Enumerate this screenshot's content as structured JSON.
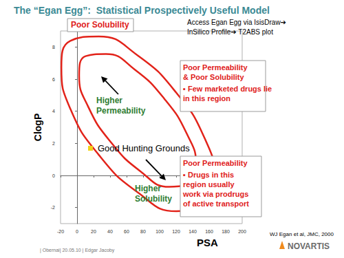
{
  "title": "The “Egan Egg”:  Statistical Prospectively Useful Model",
  "note": [
    "Access Egan Egg via IsisDraw➔",
    "InSilico Profile➔ T2ABS plot"
  ],
  "footer": "| Obernai| 20.05.10 | Edgar Jacoby",
  "citation": "WJ Egan et al, JMC, 2000",
  "logo": "NOVARTIS",
  "chart_data": {
    "type": "line",
    "x_label": "PSA",
    "y_label": "ClogP",
    "xlim": [
      -20,
      200
    ],
    "xticks": [
      -20,
      0,
      20,
      40,
      60,
      80,
      100,
      120,
      140,
      160,
      180,
      200
    ],
    "ylim": [
      -3,
      9
    ],
    "yticks": [
      -2,
      0,
      2,
      4,
      6,
      8
    ],
    "grid": false,
    "series": [
      {
        "color": "#e2231a",
        "line_style": "solid",
        "x": [
          154.8,
          167.2,
          154.6,
          120.2,
          73.3,
          26.3,
          -8.1,
          -19,
          -7.9,
          26.5,
          73.4,
          120.3
        ],
        "values": [
          -1.95,
          -0.29,
          2.31,
          5.15,
          7.48,
          8.66,
          8.38,
          6.72,
          4.12,
          1.27,
          -1.05,
          -2.23
        ]
      },
      {
        "color": "#e2231a",
        "line_style": "solid",
        "x": [
          136.3,
          144.2,
          133,
          105.8,
          70,
          35,
          10.3,
          2.5,
          13.7,
          40.8,
          76.7,
          111.7
        ],
        "values": [
          -0.57,
          0.64,
          2.59,
          4.77,
          6.59,
          7.56,
          7.43,
          6.21,
          4.26,
          2.08,
          0.26,
          -0.71
        ]
      }
    ],
    "annotations": {
      "poor_solubility": "Poor Solubility",
      "higher_permeability": [
        "Higher",
        "Permeability"
      ],
      "good_hunting": "Good Hunting Grounds",
      "higher_solubility": [
        "Higher",
        "Solubility"
      ],
      "box_top": {
        "heading": [
          "Poor Permeability",
          "& Poor Solubility"
        ],
        "bullet": [
          "▪ Few marketed drugs lie",
          "in this region"
        ]
      },
      "box_bottom": {
        "heading": [
          "Poor Permeability"
        ],
        "bullet": [
          "▪ Drugs in this",
          "region usually",
          "work via prodrugs",
          "of active transport"
        ]
      }
    }
  }
}
